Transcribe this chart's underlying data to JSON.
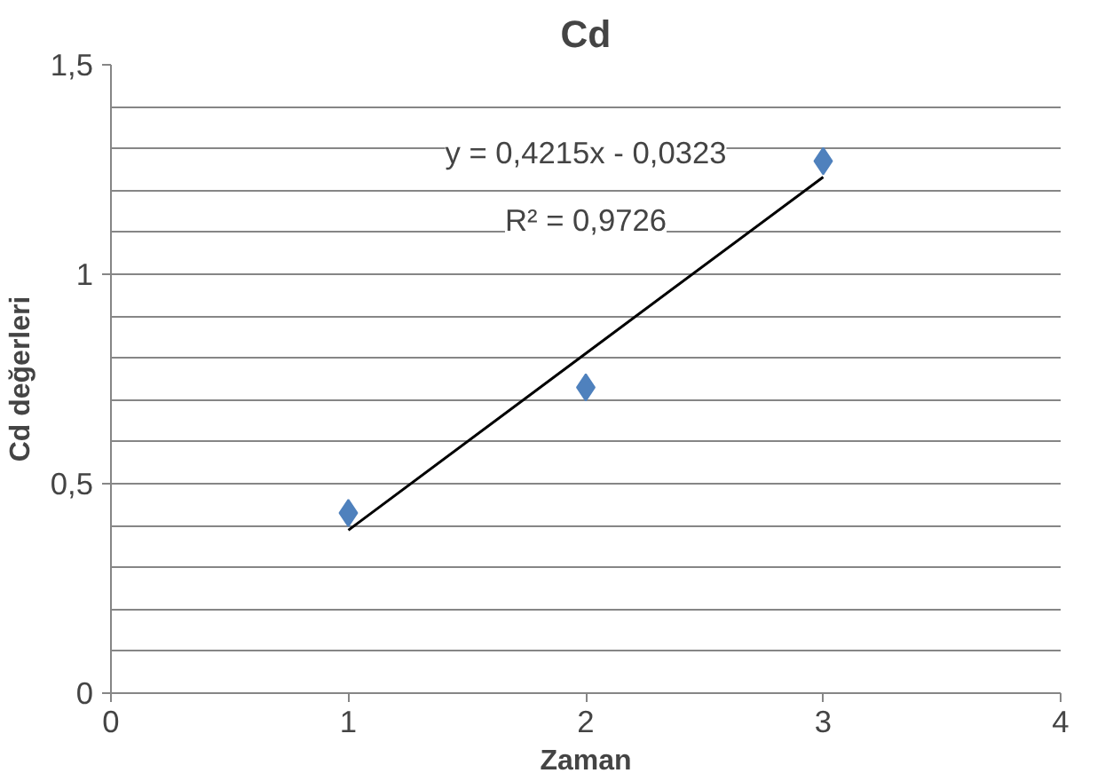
{
  "chart_data": {
    "type": "scatter",
    "title": "Cd",
    "xlabel": "Zaman",
    "ylabel": "Cd değerleri",
    "xlim": [
      0,
      4
    ],
    "xticks": [
      0,
      1,
      2,
      3,
      4
    ],
    "ylim": [
      0,
      1.5
    ],
    "yticks": [
      0,
      {
        "value": 0.5,
        "label": "0,5"
      },
      1,
      {
        "value": 1.5,
        "label": "1,5"
      }
    ],
    "grid": "y",
    "series": [
      {
        "color": "#4f81bd",
        "marker": "diamond",
        "x": [
          1,
          2,
          3
        ],
        "values": [
          0.43,
          0.73,
          1.27
        ]
      },
      {
        "type": "line",
        "color": "#000000",
        "x": [
          1,
          2,
          3
        ],
        "values": [
          0.389,
          0.811,
          1.232
        ],
        "line_style": "solid"
      }
    ],
    "annotations": [
      "y = 0,4215x - 0,0323",
      "R² = 0,9726"
    ]
  }
}
